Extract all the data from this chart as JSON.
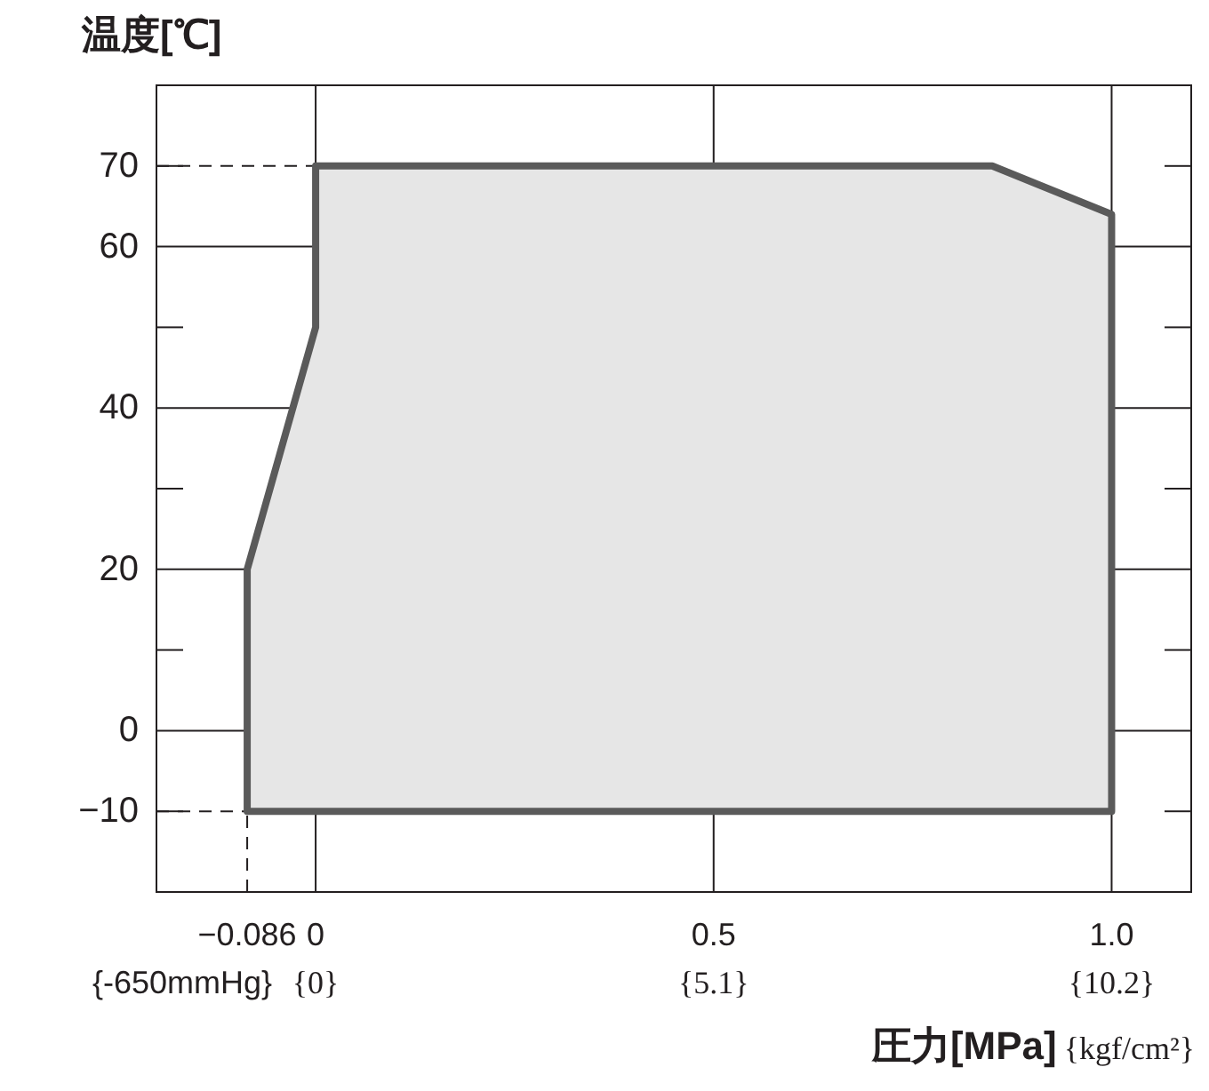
{
  "chart_data": {
    "type": "area",
    "ylabel": "温度[℃]",
    "xlabel": "圧力[MPa]{kgf/cm²}",
    "x": [
      -0.086,
      -0.086,
      0,
      0,
      0.85,
      1.0,
      1.0
    ],
    "series": [
      {
        "color": "#5a5a5a",
        "values": [
          -10,
          20,
          50,
          70,
          70,
          64,
          -10
        ]
      }
    ],
    "xlim": [
      -0.2,
      1.1
    ],
    "ylim": [
      -20,
      80
    ],
    "xticks": [
      {
        "value": -0.086,
        "label": "−0.086"
      },
      0,
      0.5,
      {
        "value": 1.0,
        "label": "1.0"
      }
    ],
    "annotations": [
      "{-650mmHg}",
      "{0}",
      "{5.1}",
      "{10.2}"
    ],
    "yticks": [
      {
        "value": -10,
        "label": "−10"
      },
      0,
      {
        "value": 10,
        "label": null
      },
      20,
      {
        "value": 30,
        "label": null
      },
      40,
      {
        "value": 50,
        "label": null
      },
      60,
      70
    ],
    "ref_lines": [
      {
        "axis": "y",
        "value": 70,
        "line_style": "dashed"
      },
      {
        "axis": "y",
        "value": -10,
        "line_style": "dashed"
      },
      {
        "axis": "x",
        "value": -0.086,
        "line_style": "dashed"
      }
    ],
    "grid": true
  }
}
